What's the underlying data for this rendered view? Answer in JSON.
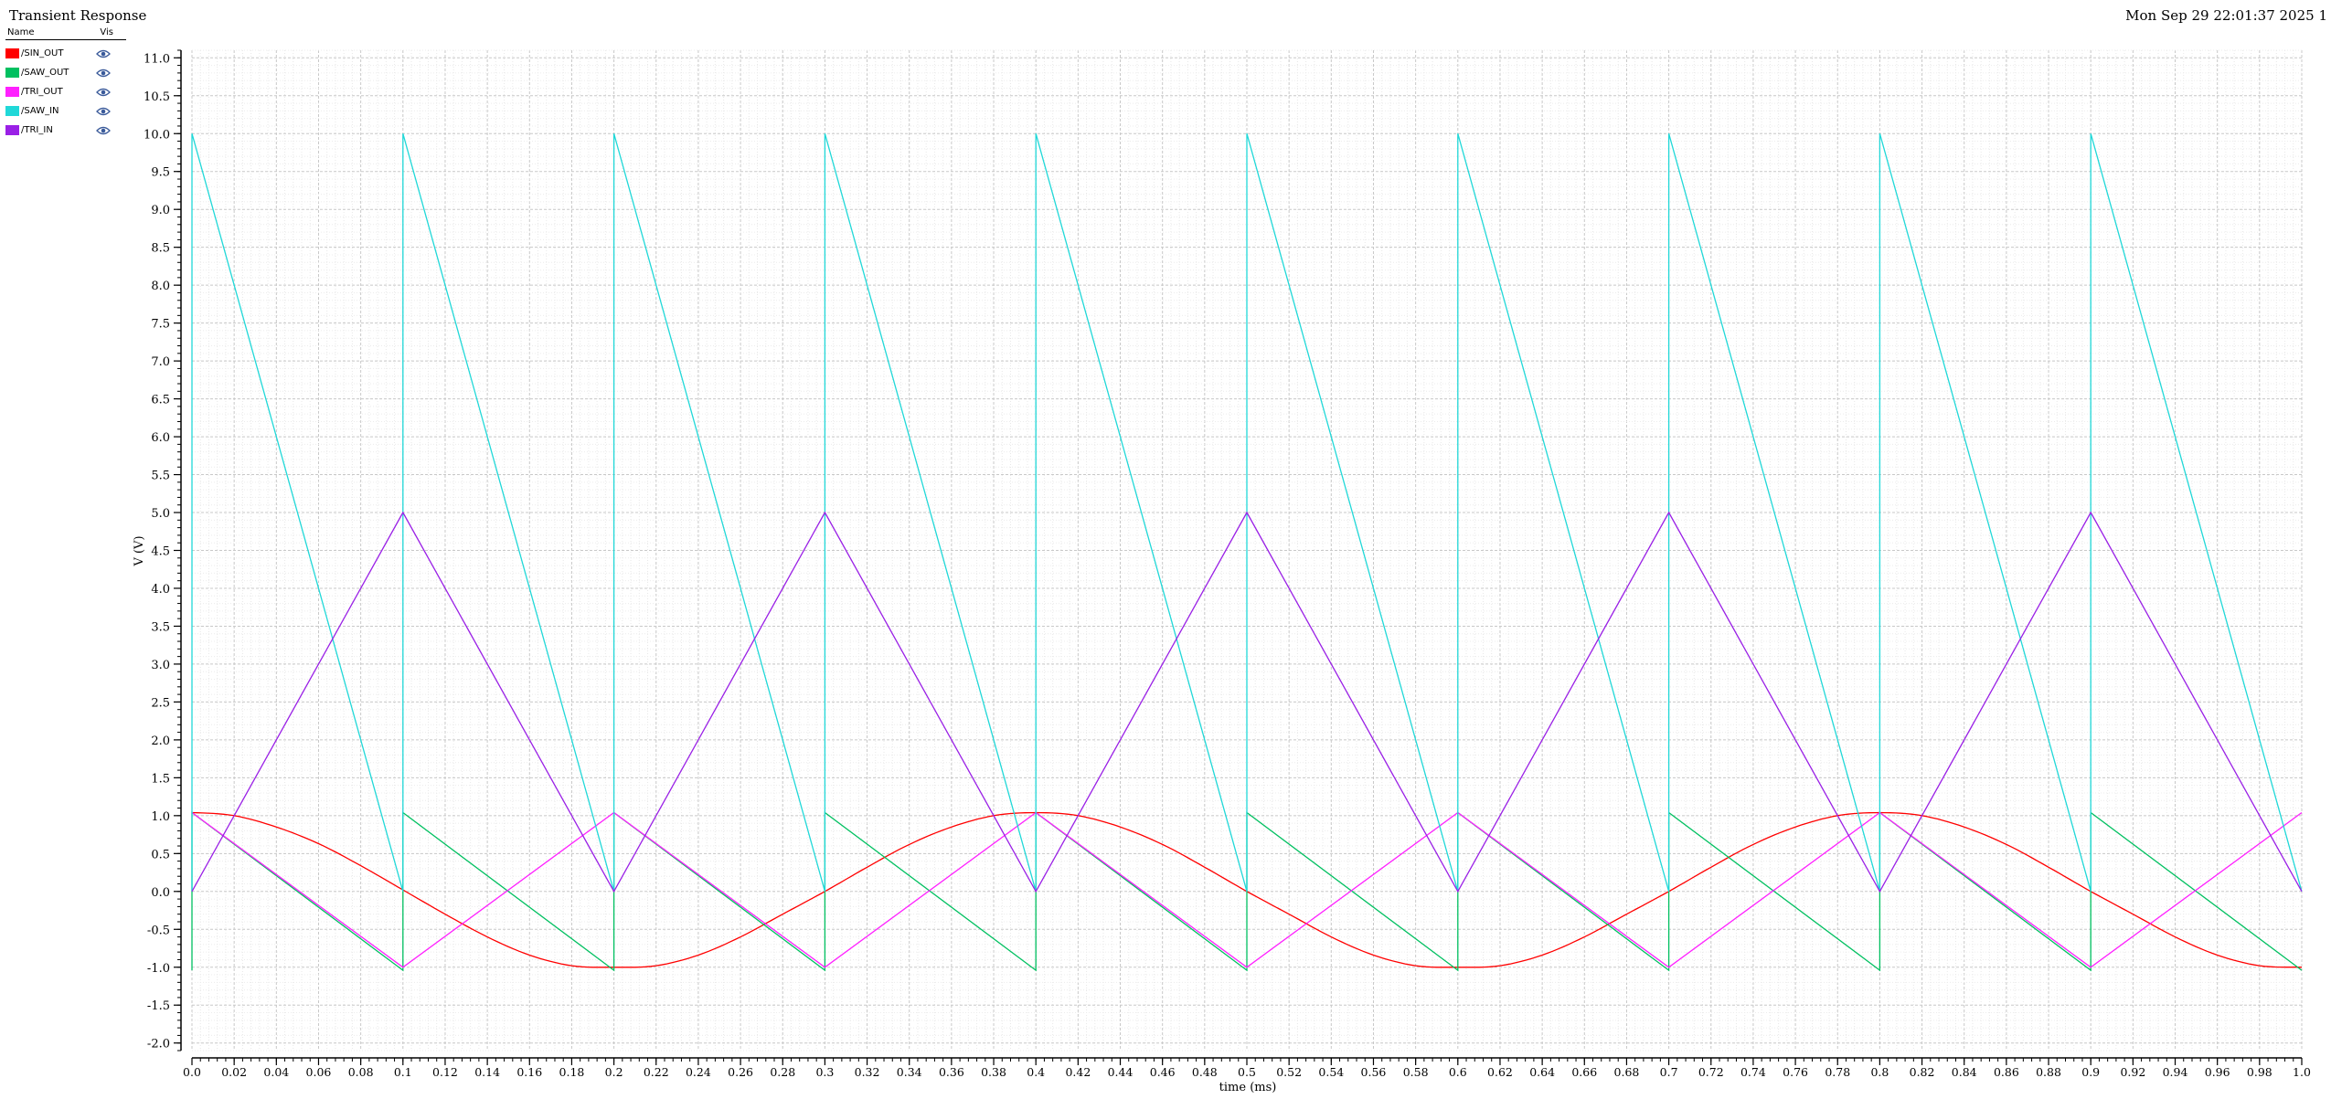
{
  "header": {
    "title": "Transient Response",
    "datetime": "Mon Sep 29 22:01:37 2025  1"
  },
  "legend": {
    "col_name": "Name",
    "col_vis": "Vis",
    "items": [
      {
        "name": "/SIN_OUT",
        "color": "#ff0000",
        "icon": "eye-icon"
      },
      {
        "name": "/SAW_OUT",
        "color": "#00c060",
        "icon": "eye-icon"
      },
      {
        "name": "/TRI_OUT",
        "color": "#ff20ff",
        "icon": "eye-icon"
      },
      {
        "name": "/SAW_IN",
        "color": "#20d8d8",
        "icon": "eye-icon"
      },
      {
        "name": "/TRI_IN",
        "color": "#9a20e6",
        "icon": "eye-icon"
      }
    ]
  },
  "chart_data": {
    "type": "line",
    "xlabel": "time (ms)",
    "ylabel": "V (V)",
    "xlim": [
      0,
      1
    ],
    "ylim": [
      -2.1,
      11.1
    ],
    "grid": true,
    "legend_position": "top-left",
    "x_ticks": [
      "0.0",
      "0.02",
      "0.04",
      "0.06",
      "0.08",
      "0.1",
      "0.12",
      "0.14",
      "0.16",
      "0.18",
      "0.2",
      "0.22",
      "0.24",
      "0.26",
      "0.28",
      "0.3",
      "0.32",
      "0.34",
      "0.36",
      "0.38",
      "0.4",
      "0.42",
      "0.44",
      "0.46",
      "0.48",
      "0.5",
      "0.52",
      "0.54",
      "0.56",
      "0.58",
      "0.6",
      "0.62",
      "0.64",
      "0.66",
      "0.68",
      "0.7",
      "0.72",
      "0.74",
      "0.76",
      "0.78",
      "0.8",
      "0.82",
      "0.84",
      "0.86",
      "0.88",
      "0.9",
      "0.92",
      "0.94",
      "0.96",
      "0.98",
      "1.0"
    ],
    "y_ticks": [
      "-2.0",
      "-1.5",
      "-1.0",
      "-0.5",
      "0.0",
      "0.5",
      "1.0",
      "1.5",
      "2.0",
      "2.5",
      "3.0",
      "3.5",
      "4.0",
      "4.5",
      "5.0",
      "5.5",
      "6.0",
      "6.5",
      "7.0",
      "7.5",
      "8.0",
      "8.5",
      "9.0",
      "9.5",
      "10.0",
      "10.5",
      "11.0"
    ],
    "series": [
      {
        "name": "/SIN_OUT",
        "color": "#ff0000",
        "x": [
          0,
          0.02,
          0.04,
          0.06,
          0.08,
          0.1,
          0.12,
          0.14,
          0.16,
          0.18,
          0.2,
          0.22,
          0.24,
          0.26,
          0.28,
          0.3,
          0.32,
          0.34,
          0.36,
          0.38,
          0.4,
          0.42,
          0.44,
          0.46,
          0.48,
          0.5,
          0.52,
          0.54,
          0.56,
          0.58,
          0.6,
          0.62,
          0.64,
          0.66,
          0.68,
          0.7,
          0.72,
          0.74,
          0.76,
          0.78,
          0.8,
          0.82,
          0.84,
          0.86,
          0.88,
          0.9,
          0.92,
          0.94,
          0.96,
          0.98,
          1.0
        ],
        "y": [
          1.04,
          1.0,
          0.85,
          0.63,
          0.34,
          0.02,
          -0.3,
          -0.6,
          -0.84,
          -0.98,
          -1.0,
          -0.98,
          -0.84,
          -0.6,
          -0.3,
          0.0,
          0.32,
          0.62,
          0.85,
          1.0,
          1.04,
          1.0,
          0.85,
          0.62,
          0.32,
          0.0,
          -0.3,
          -0.6,
          -0.84,
          -0.98,
          -1.0,
          -0.98,
          -0.84,
          -0.6,
          -0.3,
          0.0,
          0.32,
          0.62,
          0.85,
          1.0,
          1.04,
          1.0,
          0.85,
          0.62,
          0.32,
          0.0,
          -0.3,
          -0.6,
          -0.84,
          -0.98,
          -1.0
        ]
      },
      {
        "name": "/SAW_OUT",
        "color": "#00c060",
        "x": [
          0,
          0,
          0.1,
          0.1,
          0.2,
          0.2,
          0.3,
          0.3,
          0.4,
          0.4,
          0.5,
          0.5,
          0.6,
          0.6,
          0.7,
          0.7,
          0.8,
          0.8,
          0.9,
          0.9,
          1.0
        ],
        "y": [
          -1.04,
          1.04,
          -1.04,
          1.04,
          -1.04,
          1.04,
          -1.04,
          1.04,
          -1.04,
          1.04,
          -1.04,
          1.04,
          -1.04,
          1.04,
          -1.04,
          1.04,
          -1.04,
          1.04,
          -1.04,
          1.04,
          -1.04
        ]
      },
      {
        "name": "/TRI_OUT",
        "color": "#ff20ff",
        "x": [
          0,
          0.1,
          0.2,
          0.3,
          0.4,
          0.5,
          0.6,
          0.7,
          0.8,
          0.9,
          1.0
        ],
        "y": [
          1.04,
          -1.0,
          1.04,
          -1.0,
          1.04,
          -1.0,
          1.04,
          -1.0,
          1.04,
          -1.0,
          1.04
        ]
      },
      {
        "name": "/SAW_IN",
        "color": "#20d8d8",
        "x": [
          0,
          0,
          0.1,
          0.1,
          0.2,
          0.2,
          0.3,
          0.3,
          0.4,
          0.4,
          0.5,
          0.5,
          0.6,
          0.6,
          0.7,
          0.7,
          0.8,
          0.8,
          0.9,
          0.9,
          1.0
        ],
        "y": [
          0,
          10,
          0,
          10,
          0,
          10,
          0,
          10,
          0,
          10,
          0,
          10,
          0,
          10,
          0,
          10,
          0,
          10,
          0,
          10,
          0
        ]
      },
      {
        "name": "/TRI_IN",
        "color": "#9a20e6",
        "x": [
          0,
          0.1,
          0.2,
          0.3,
          0.4,
          0.5,
          0.6,
          0.7,
          0.8,
          0.9,
          1.0
        ],
        "y": [
          0,
          5,
          0,
          5,
          0,
          5,
          0,
          5,
          0,
          5,
          0
        ]
      }
    ]
  }
}
